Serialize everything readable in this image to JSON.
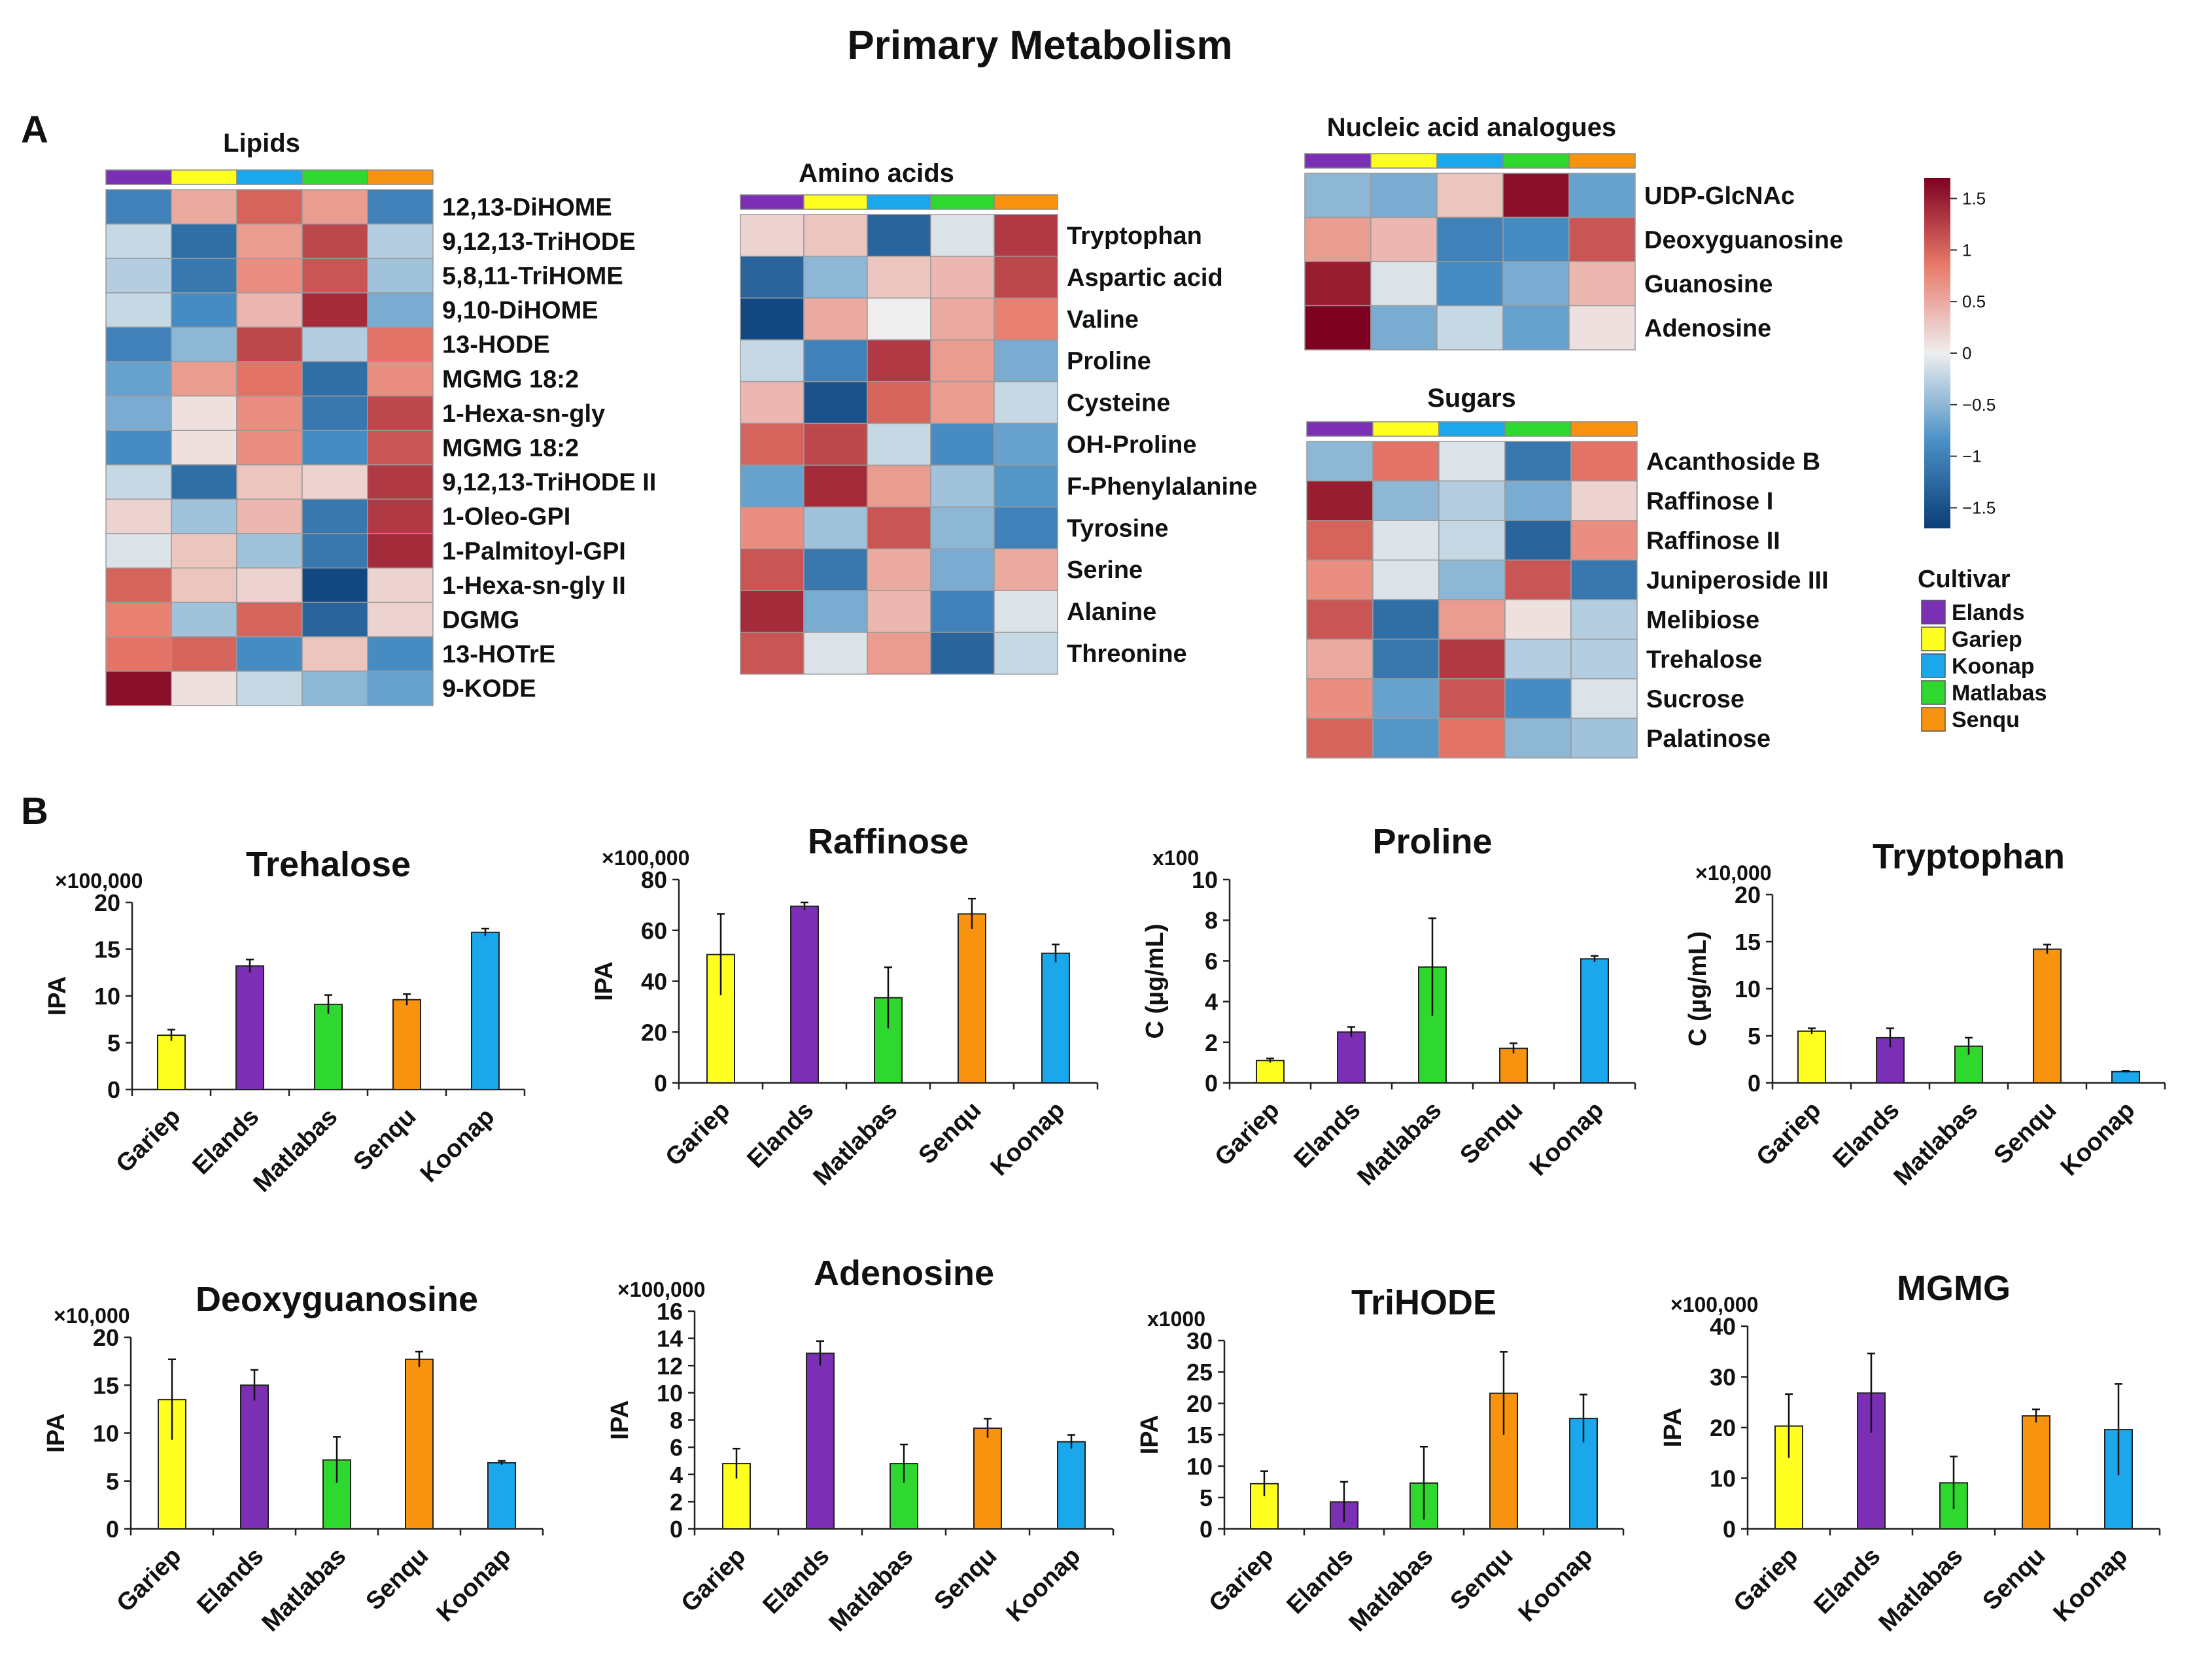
{
  "title": "Primary Metabolism",
  "panel_labels": {
    "a": "A",
    "b": "B"
  },
  "colors": {
    "cultivars": {
      "Elands": "#7b2fb5",
      "Gariep": "#ffff20",
      "Koonap": "#1aa7ec",
      "Matlabas": "#2ed82e",
      "Senqu": "#f7930f"
    },
    "heat_low": "#0c3d78",
    "heat_mid": "#eeeeee",
    "heat_high": "#7e0020",
    "axis": "#222222"
  },
  "heatmap_column_order": [
    "Elands",
    "Gariep",
    "Koonap",
    "Matlabas",
    "Senqu"
  ],
  "color_key": {
    "ticks": [
      1.5,
      1,
      0.5,
      0,
      -0.5,
      -1,
      -1.5
    ],
    "tick_labels": [
      "1.5",
      "1",
      "0.5",
      "0",
      "−0.5",
      "−1",
      "−1.5"
    ]
  },
  "cultivar_legend": {
    "title": "Cultivar",
    "items": [
      "Elands",
      "Gariep",
      "Koonap",
      "Matlabas",
      "Senqu"
    ]
  },
  "chart_data": [
    {
      "type": "heatmap",
      "id": "lipids",
      "title": "Lipids",
      "rows": [
        "12,13-DiHOME",
        "9,12,13-TriHODE",
        "5,8,11-TriHOME",
        "9,10-DiHOME",
        "13-HODE",
        "MGMG 18:2",
        "1-Hexa-sn-gly",
        "MGMG 18:2",
        "9,12,13-TriHODE II",
        "1-Oleo-GPI",
        "1-Palmitoyl-GPI",
        "1-Hexa-sn-gly II",
        "DGMG",
        "13-HOTrE",
        "9-KODE"
      ],
      "columns": [
        "Elands",
        "Gariep",
        "Koonap",
        "Matlabas",
        "Senqu"
      ],
      "values": [
        [
          -1.0,
          0.5,
          1.0,
          0.6,
          -1.0
        ],
        [
          -0.2,
          -1.2,
          0.6,
          1.2,
          -0.3
        ],
        [
          -0.3,
          -1.1,
          0.7,
          1.1,
          -0.4
        ],
        [
          -0.2,
          -0.9,
          0.4,
          1.4,
          -0.6
        ],
        [
          -1.0,
          -0.5,
          1.2,
          -0.3,
          0.9
        ],
        [
          -0.7,
          0.6,
          0.9,
          -1.2,
          0.7
        ],
        [
          -0.6,
          0.1,
          0.7,
          -1.1,
          1.2
        ],
        [
          -0.9,
          0.1,
          0.7,
          -0.9,
          1.1
        ],
        [
          -0.2,
          -1.2,
          0.3,
          0.2,
          1.3
        ],
        [
          0.2,
          -0.4,
          0.4,
          -1.1,
          1.3
        ],
        [
          -0.1,
          0.3,
          -0.4,
          -1.1,
          1.4
        ],
        [
          1.0,
          0.3,
          0.2,
          -1.6,
          0.2
        ],
        [
          0.8,
          -0.4,
          1.0,
          -1.3,
          0.2
        ],
        [
          0.9,
          1.0,
          -0.9,
          0.3,
          -0.9
        ],
        [
          1.6,
          0.1,
          -0.2,
          -0.5,
          -0.7
        ]
      ]
    },
    {
      "type": "heatmap",
      "id": "amino_acids",
      "title": "Amino acids",
      "rows": [
        "Tryptophan",
        "Aspartic acid",
        "Valine",
        "Proline",
        "Cysteine",
        "OH-Proline",
        "F-Phenylalanine",
        "Tyrosine",
        "Serine",
        "Alanine",
        "Threonine"
      ],
      "columns": [
        "Elands",
        "Gariep",
        "Koonap",
        "Matlabas",
        "Senqu"
      ],
      "values": [
        [
          0.2,
          0.3,
          -1.3,
          -0.1,
          1.3
        ],
        [
          -1.3,
          -0.5,
          0.3,
          0.4,
          1.2
        ],
        [
          -1.6,
          0.5,
          0.0,
          0.5,
          0.8
        ],
        [
          -0.2,
          -1.0,
          1.3,
          0.6,
          -0.6
        ],
        [
          0.4,
          -1.5,
          1.0,
          0.6,
          -0.2
        ],
        [
          1.0,
          1.2,
          -0.2,
          -0.9,
          -0.7
        ],
        [
          -0.7,
          1.4,
          0.6,
          -0.4,
          -0.8
        ],
        [
          0.7,
          -0.4,
          1.1,
          -0.5,
          -1.0
        ],
        [
          1.1,
          -1.1,
          0.5,
          -0.6,
          0.5
        ],
        [
          1.4,
          -0.6,
          0.4,
          -1.0,
          -0.1
        ],
        [
          1.1,
          -0.1,
          0.6,
          -1.3,
          -0.2
        ]
      ]
    },
    {
      "type": "heatmap",
      "id": "nucleic_acid_analogues",
      "title": "Nucleic acid analogues",
      "rows": [
        "UDP-GlcNAc",
        "Deoxyguanosine",
        "Guanosine",
        "Adenosine"
      ],
      "columns": [
        "Elands",
        "Gariep",
        "Koonap",
        "Matlabas",
        "Senqu"
      ],
      "values": [
        [
          -0.5,
          -0.6,
          0.3,
          1.6,
          -0.7
        ],
        [
          0.6,
          0.4,
          -1.0,
          -0.9,
          1.1
        ],
        [
          1.5,
          -0.1,
          -0.9,
          -0.6,
          0.4
        ],
        [
          1.7,
          -0.6,
          -0.2,
          -0.7,
          0.1
        ]
      ]
    },
    {
      "type": "heatmap",
      "id": "sugars",
      "title": "Sugars",
      "rows": [
        "Acanthoside B",
        "Raffinose I",
        "Raffinose II",
        "Juniperoside III",
        "Melibiose",
        "Trehalose",
        "Sucrose",
        "Palatinose"
      ],
      "columns": [
        "Elands",
        "Gariep",
        "Koonap",
        "Matlabas",
        "Senqu"
      ],
      "values": [
        [
          -0.5,
          0.9,
          -0.1,
          -1.1,
          0.9
        ],
        [
          1.5,
          -0.5,
          -0.3,
          -0.6,
          0.2
        ],
        [
          1.0,
          -0.1,
          -0.2,
          -1.3,
          0.7
        ],
        [
          0.7,
          -0.1,
          -0.5,
          1.1,
          -1.1
        ],
        [
          1.1,
          -1.2,
          0.6,
          0.1,
          -0.3
        ],
        [
          0.5,
          -1.1,
          1.3,
          -0.3,
          -0.3
        ],
        [
          0.7,
          -0.7,
          1.1,
          -0.9,
          -0.1
        ],
        [
          1.0,
          -0.8,
          0.9,
          -0.5,
          -0.4
        ]
      ]
    },
    {
      "type": "bar",
      "id": "trehalose",
      "title": "Trehalose",
      "multiplier": "×100,000",
      "ylabel": "IPA",
      "ylim": [
        0,
        20
      ],
      "yticks": [
        0,
        5,
        10,
        15,
        20
      ],
      "categories": [
        "Gariep",
        "Elands",
        "Matlabas",
        "Senqu",
        "Koonap"
      ],
      "values": [
        5.8,
        13.2,
        9.1,
        9.6,
        16.8
      ],
      "errors": [
        0.6,
        0.7,
        1.0,
        0.6,
        0.4
      ]
    },
    {
      "type": "bar",
      "id": "raffinose",
      "title": "Raffinose",
      "multiplier": "×100,000",
      "ylabel": "IPA",
      "ylim": [
        0,
        80
      ],
      "yticks": [
        0,
        20,
        40,
        60,
        80
      ],
      "categories": [
        "Gariep",
        "Elands",
        "Matlabas",
        "Senqu",
        "Koonap"
      ],
      "values": [
        50.5,
        69.5,
        33.5,
        66.5,
        51
      ],
      "errors": [
        16,
        1.5,
        12,
        6,
        3.5
      ]
    },
    {
      "type": "bar",
      "id": "proline",
      "title": "Proline",
      "multiplier": "x100",
      "ylabel": "C (µg/mL)",
      "ylim": [
        0,
        10
      ],
      "yticks": [
        0,
        2,
        4,
        6,
        8,
        10
      ],
      "categories": [
        "Gariep",
        "Elands",
        "Matlabas",
        "Senqu",
        "Koonap"
      ],
      "values": [
        1.1,
        2.5,
        5.7,
        1.7,
        6.1
      ],
      "errors": [
        0.1,
        0.25,
        2.4,
        0.25,
        0.15
      ]
    },
    {
      "type": "bar",
      "id": "tryptophan",
      "title": "Tryptophan",
      "multiplier": "×10,000",
      "ylabel": "C (µg/mL)",
      "ylim": [
        0,
        20
      ],
      "yticks": [
        0,
        5,
        10,
        15,
        20
      ],
      "categories": [
        "Gariep",
        "Elands",
        "Matlabas",
        "Senqu",
        "Koonap"
      ],
      "values": [
        5.5,
        4.8,
        3.9,
        14.2,
        1.2
      ],
      "errors": [
        0.3,
        1.0,
        0.9,
        0.5,
        0.1
      ]
    },
    {
      "type": "bar",
      "id": "deoxyguanosine",
      "title": "Deoxyguanosine",
      "multiplier": "×10,000",
      "ylabel": "IPA",
      "ylim": [
        0,
        20
      ],
      "yticks": [
        0,
        5,
        10,
        15,
        20
      ],
      "categories": [
        "Gariep",
        "Elands",
        "Matlabas",
        "Senqu",
        "Koonap"
      ],
      "values": [
        13.5,
        15,
        7.2,
        17.7,
        6.9
      ],
      "errors": [
        4.2,
        1.6,
        2.4,
        0.8,
        0.2
      ]
    },
    {
      "type": "bar",
      "id": "adenosine",
      "title": "Adenosine",
      "multiplier": "×100,000",
      "ylabel": "IPA",
      "ylim": [
        0,
        16
      ],
      "yticks": [
        0,
        2,
        4,
        6,
        8,
        10,
        12,
        14,
        16
      ],
      "categories": [
        "Gariep",
        "Elands",
        "Matlabas",
        "Senqu",
        "Koonap"
      ],
      "values": [
        4.8,
        12.9,
        4.8,
        7.4,
        6.4
      ],
      "errors": [
        1.1,
        0.9,
        1.4,
        0.7,
        0.5
      ]
    },
    {
      "type": "bar",
      "id": "trihode",
      "title": "TriHODE",
      "multiplier": "x1000",
      "ylabel": "IPA",
      "ylim": [
        0,
        30
      ],
      "yticks": [
        0,
        5,
        10,
        15,
        20,
        25,
        30
      ],
      "categories": [
        "Gariep",
        "Elands",
        "Matlabas",
        "Senqu",
        "Koonap"
      ],
      "values": [
        7.2,
        4.3,
        7.3,
        21.6,
        17.6
      ],
      "errors": [
        2.0,
        3.2,
        5.8,
        6.6,
        3.8
      ]
    },
    {
      "type": "bar",
      "id": "mgmg",
      "title": "MGMG",
      "multiplier": "×100,000",
      "ylabel": "IPA",
      "ylim": [
        0,
        40
      ],
      "yticks": [
        0,
        10,
        20,
        30,
        40
      ],
      "categories": [
        "Gariep",
        "Elands",
        "Matlabas",
        "Senqu",
        "Koonap"
      ],
      "values": [
        20.3,
        26.8,
        9.1,
        22.3,
        19.6
      ],
      "errors": [
        6.3,
        7.8,
        5.2,
        1.3,
        9.0
      ]
    }
  ]
}
